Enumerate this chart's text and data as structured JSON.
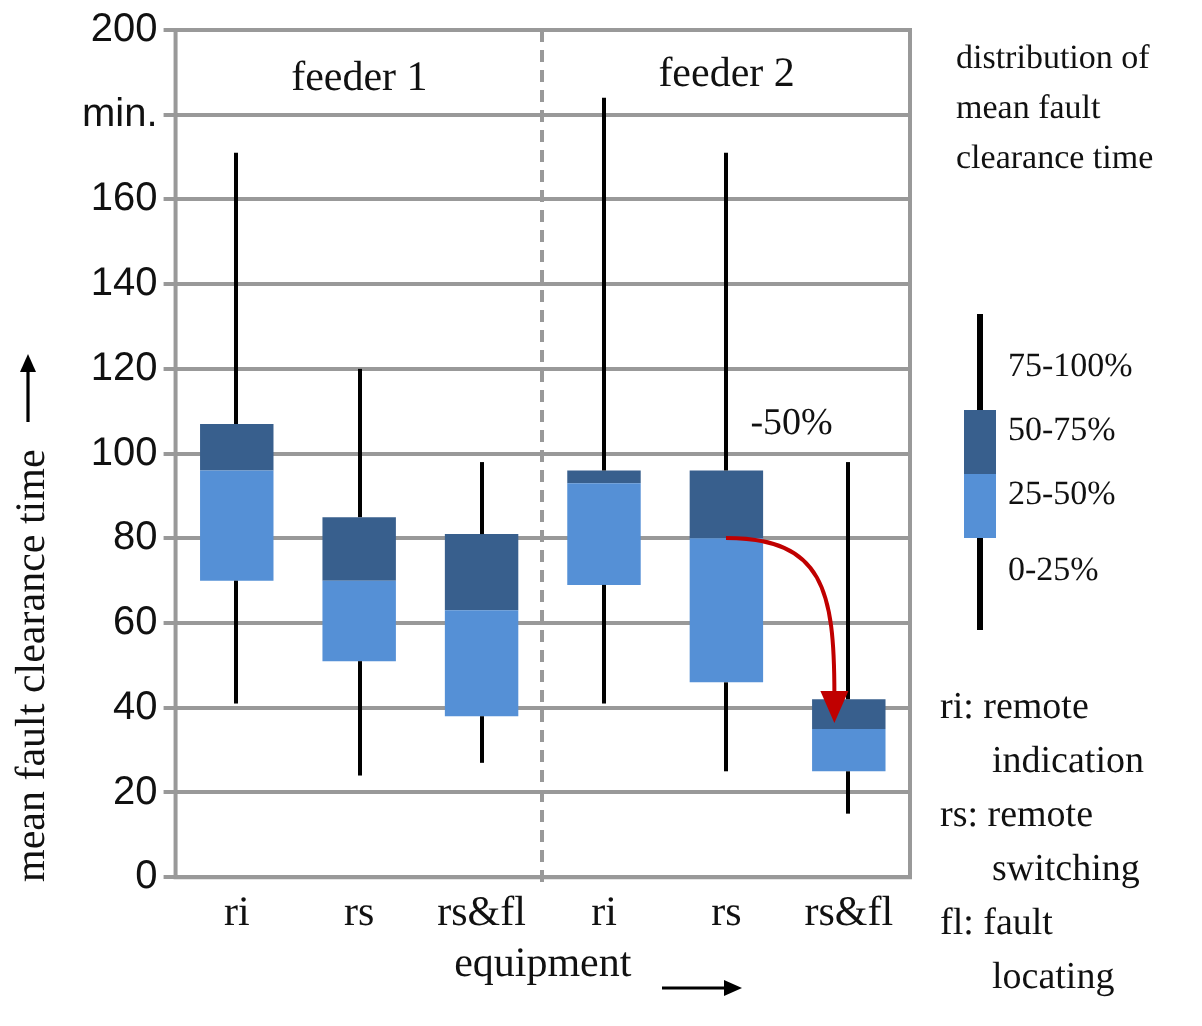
{
  "chart_data": {
    "type": "box",
    "xlabel": "equipment",
    "ylabel": "mean fault clearance time",
    "categories": [
      "ri",
      "rs",
      "rs&fl",
      "ri",
      "rs",
      "rs&fl"
    ],
    "boxes": [
      {
        "low": 41,
        "q1": 70,
        "median": 96,
        "q3": 107,
        "high": 171
      },
      {
        "low": 24,
        "q1": 51,
        "median": 70,
        "q3": 85,
        "high": 120
      },
      {
        "low": 27,
        "q1": 38,
        "median": 63,
        "q3": 81,
        "high": 98
      },
      {
        "low": 41,
        "q1": 69,
        "median": 93,
        "q3": 96,
        "high": 184
      },
      {
        "low": 25,
        "q1": 46,
        "median": 80,
        "q3": 96,
        "high": 171
      },
      {
        "low": 15,
        "q1": 25,
        "median": 35,
        "q3": 42,
        "high": 98
      }
    ],
    "color": "#5590d6",
    "ylim": [
      0,
      200
    ],
    "yticks": [
      0,
      20,
      40,
      60,
      80,
      100,
      120,
      140,
      160,
      {
        "value": 180,
        "label": "min."
      },
      200
    ],
    "grid": "y",
    "annotations": [
      "feeder 1",
      "feeder 2",
      "-50%",
      "distribution of mean fault clearance time",
      "75-100%",
      "50-75%",
      "25-50%",
      "0-25%",
      "ri: remote indication",
      "rs: remote switching",
      "fl: fault locating"
    ]
  }
}
